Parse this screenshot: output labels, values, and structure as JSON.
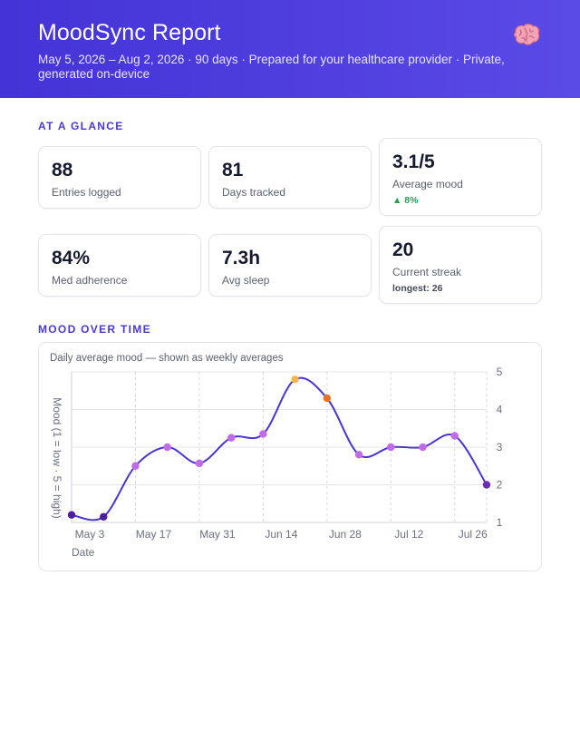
{
  "header": {
    "title": "MoodSync Report",
    "subtitle": "May 5, 2026 – Aug 2, 2026 · 90 days  ·  Prepared for your healthcare provider  ·  Private, generated on-device",
    "icon": "brain-icon"
  },
  "glance": {
    "label": "AT A GLANCE",
    "cards": [
      {
        "value": "88",
        "label": "Entries logged"
      },
      {
        "value": "81",
        "label": "Days tracked"
      },
      {
        "value": "3.1/5",
        "label": "Average mood",
        "sub": "▲ 8%"
      },
      {
        "value": "84%",
        "label": "Med adherence"
      },
      {
        "value": "7.3h",
        "label": "Avg sleep"
      },
      {
        "value": "20",
        "label": "Current streak",
        "sub": "longest: 26"
      }
    ],
    "colors": {
      "positive": "#2a9c54"
    }
  },
  "mood": {
    "label": "MOOD OVER TIME",
    "subtitle": "Daily average mood — shown as weekly averages"
  },
  "chart_data": {
    "type": "line",
    "xlabel": "Date",
    "ylabel": "Mood (1 = low · 5 = high)",
    "ylim": [
      1,
      5
    ],
    "yticks": [
      1,
      2,
      3,
      4,
      5
    ],
    "x_tick_labels": [
      "May 3",
      "May 17",
      "May 31",
      "Jun 14",
      "Jun 28",
      "Jul 12",
      "Jul 26"
    ],
    "x": [
      "May 3",
      "May 10",
      "May 17",
      "May 24",
      "May 31",
      "Jun 7",
      "Jun 14",
      "Jun 21",
      "Jun 28",
      "Jul 5",
      "Jul 12",
      "Jul 19",
      "Jul 26",
      "Aug 2"
    ],
    "values": [
      1.2,
      1.15,
      2.5,
      3.0,
      2.57,
      3.25,
      3.35,
      4.8,
      4.3,
      2.8,
      3.0,
      3.0,
      3.3,
      2.0
    ],
    "grid": true,
    "line_color": "#4a35d4",
    "point_colors": [
      "#4b1fa0",
      "#4b1fa0",
      "#c06ce8",
      "#c06ce8",
      "#c06ce8",
      "#c06ce8",
      "#c06ce8",
      "#f2b845",
      "#ea7424",
      "#c06ce8",
      "#c06ce8",
      "#c06ce8",
      "#c06ce8",
      "#6a2fb0"
    ]
  }
}
